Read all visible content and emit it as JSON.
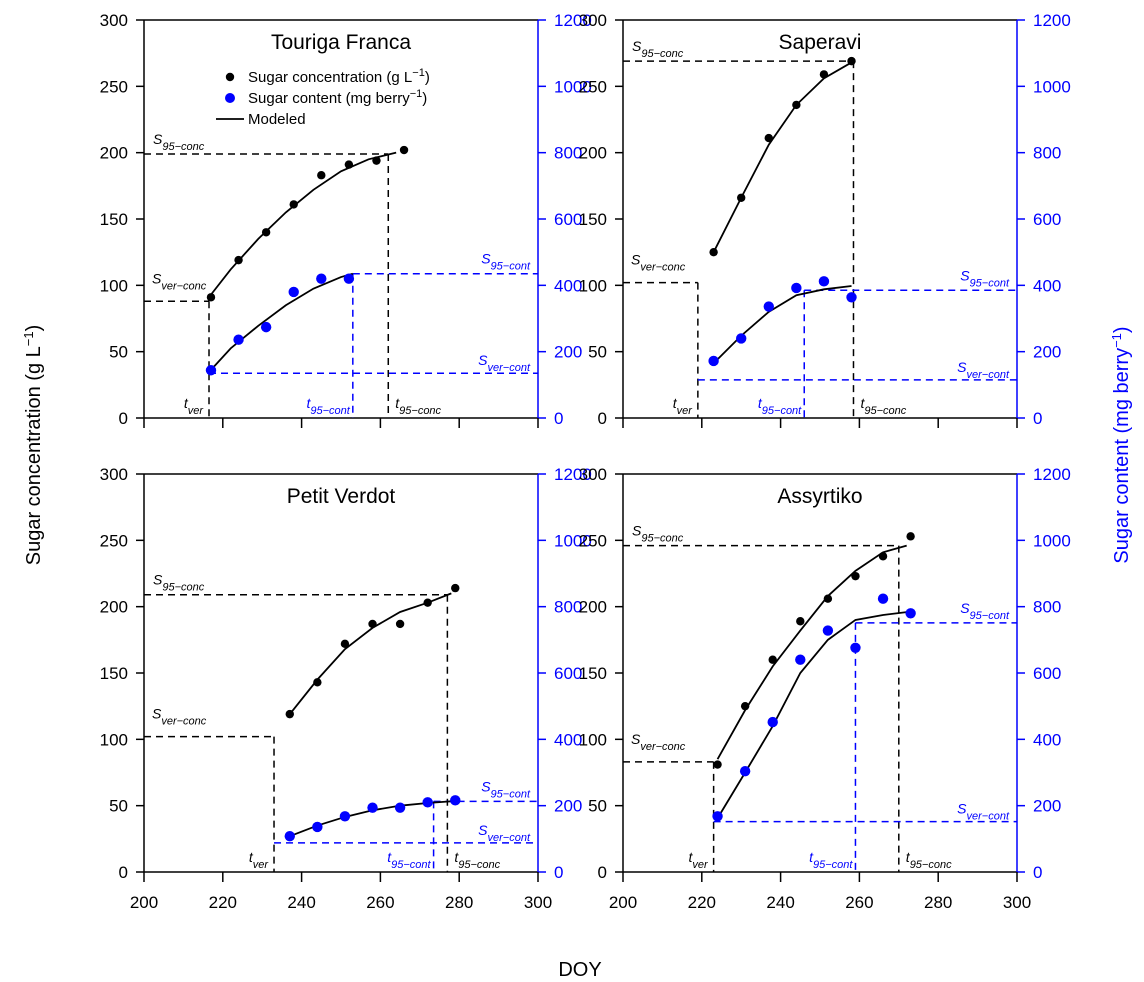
{
  "chart_data": {
    "type": "scatter",
    "xlabel": "DOY",
    "ylabel_left": "Sugar concentration (g L",
    "ylabel_left_exp": "−1",
    "ylabel_left_end": ")",
    "ylabel_right": "Sugar content (mg berry",
    "ylabel_right_exp": "−1",
    "ylabel_right_end": ")",
    "xlim": [
      200,
      300
    ],
    "ylim_left": [
      0,
      300
    ],
    "ylim_right": [
      0,
      1200
    ],
    "xticks": [
      "200",
      "220",
      "240",
      "260",
      "280",
      "300"
    ],
    "yticks_left": [
      "0",
      "50",
      "100",
      "150",
      "200",
      "250",
      "300"
    ],
    "yticks_right": [
      "0",
      "200",
      "400",
      "600",
      "800",
      "1000",
      "1200"
    ],
    "colors": {
      "concentration": "#000000",
      "content": "#0000ff"
    },
    "legend": {
      "placement": "top-left of first panel",
      "items": [
        {
          "label": "Sugar concentration (g L",
          "exp": "−1",
          "end": ")",
          "color": "#000000",
          "kind": "point"
        },
        {
          "label": "Sugar content (mg berry",
          "exp": "−1",
          "end": ")",
          "color": "#0000ff",
          "kind": "point"
        },
        {
          "label": "Modeled",
          "color": "#000000",
          "kind": "line"
        }
      ]
    },
    "annotation_labels": {
      "s95_conc": {
        "main": "S",
        "sub": "95−conc"
      },
      "sver_conc": {
        "main": "S",
        "sub": "ver−conc"
      },
      "s95_cont": {
        "main": "S",
        "sub": "95−cont"
      },
      "sver_cont": {
        "main": "S",
        "sub": "ver−cont"
      },
      "tver": {
        "main": "t",
        "sub": "ver"
      },
      "t95_cont": {
        "main": "t",
        "sub": "95−cont"
      },
      "t95_conc": {
        "main": "t",
        "sub": "95−conc"
      }
    },
    "panels": [
      {
        "title": "Touriga Franca",
        "concentration_points": [
          [
            217,
            91
          ],
          [
            224,
            119
          ],
          [
            231,
            140
          ],
          [
            238,
            161
          ],
          [
            245,
            183
          ],
          [
            252,
            191
          ],
          [
            259,
            194
          ],
          [
            266,
            202
          ]
        ],
        "content_points": [
          [
            217,
            144
          ],
          [
            224,
            236
          ],
          [
            231,
            274
          ],
          [
            238,
            380
          ],
          [
            245,
            420
          ],
          [
            252,
            420
          ]
        ],
        "concentration_model": [
          [
            217,
            93
          ],
          [
            222,
            112
          ],
          [
            229,
            135
          ],
          [
            236,
            155
          ],
          [
            243,
            172
          ],
          [
            250,
            186
          ],
          [
            257,
            195
          ],
          [
            264,
            200
          ]
        ],
        "content_model": [
          [
            217,
            145
          ],
          [
            222,
            210
          ],
          [
            229,
            278
          ],
          [
            236,
            340
          ],
          [
            243,
            390
          ],
          [
            250,
            425
          ],
          [
            253,
            435
          ]
        ],
        "s95_conc": 199,
        "sver_conc": 88,
        "s95_cont": 435,
        "sver_cont": 135,
        "tver": 216.5,
        "t95_cont": 253,
        "t95_conc": 262
      },
      {
        "title": "Saperavi",
        "concentration_points": [
          [
            223,
            125
          ],
          [
            230,
            166
          ],
          [
            237,
            211
          ],
          [
            244,
            236
          ],
          [
            251,
            259
          ],
          [
            258,
            269
          ]
        ],
        "content_points": [
          [
            223,
            172
          ],
          [
            230,
            240
          ],
          [
            237,
            336
          ],
          [
            244,
            392
          ],
          [
            251,
            412
          ],
          [
            258,
            364
          ]
        ],
        "concentration_model": [
          [
            223,
            125
          ],
          [
            230,
            166
          ],
          [
            237,
            206
          ],
          [
            244,
            236
          ],
          [
            251,
            256
          ],
          [
            258,
            268
          ]
        ],
        "content_model": [
          [
            223,
            165
          ],
          [
            230,
            248
          ],
          [
            237,
            320
          ],
          [
            244,
            370
          ],
          [
            251,
            388
          ],
          [
            258,
            398
          ]
        ],
        "s95_conc": 269,
        "sver_conc": 102,
        "s95_cont": 385,
        "sver_cont": 115,
        "tver": 219,
        "t95_cont": 246,
        "t95_conc": 258.5
      },
      {
        "title": "Petit Verdot",
        "concentration_points": [
          [
            237,
            119
          ],
          [
            244,
            143
          ],
          [
            251,
            172
          ],
          [
            258,
            187
          ],
          [
            265,
            187
          ],
          [
            272,
            203
          ],
          [
            279,
            214
          ]
        ],
        "content_points": [
          [
            237,
            108
          ],
          [
            244,
            136
          ],
          [
            251,
            168
          ],
          [
            258,
            194
          ],
          [
            265,
            194
          ],
          [
            272,
            210
          ],
          [
            279,
            216
          ]
        ],
        "concentration_model": [
          [
            237,
            119
          ],
          [
            244,
            145
          ],
          [
            251,
            168
          ],
          [
            258,
            184
          ],
          [
            265,
            196
          ],
          [
            272,
            203
          ],
          [
            278,
            210
          ]
        ],
        "content_model": [
          [
            237,
            108
          ],
          [
            244,
            140
          ],
          [
            251,
            166
          ],
          [
            258,
            186
          ],
          [
            265,
            200
          ],
          [
            272,
            208
          ],
          [
            279,
            214
          ]
        ],
        "s95_conc": 209,
        "sver_conc": 102,
        "s95_cont": 213,
        "sver_cont": 88,
        "tver": 233,
        "t95_cont": 273.5,
        "t95_conc": 277
      },
      {
        "title": "Assyrtiko",
        "concentration_points": [
          [
            224,
            81
          ],
          [
            231,
            125
          ],
          [
            238,
            160
          ],
          [
            245,
            189
          ],
          [
            252,
            206
          ],
          [
            259,
            223
          ],
          [
            266,
            238
          ],
          [
            273,
            253
          ]
        ],
        "content_points": [
          [
            224,
            168
          ],
          [
            231,
            304
          ],
          [
            238,
            452
          ],
          [
            245,
            640
          ],
          [
            252,
            728
          ],
          [
            259,
            676
          ],
          [
            266,
            824
          ],
          [
            273,
            780
          ]
        ],
        "concentration_model": [
          [
            224,
            85
          ],
          [
            231,
            122
          ],
          [
            238,
            155
          ],
          [
            245,
            182
          ],
          [
            252,
            208
          ],
          [
            259,
            227
          ],
          [
            266,
            241
          ],
          [
            272,
            246
          ]
        ],
        "content_model": [
          [
            224,
            162
          ],
          [
            231,
            300
          ],
          [
            238,
            440
          ],
          [
            245,
            600
          ],
          [
            252,
            700
          ],
          [
            259,
            760
          ],
          [
            266,
            775
          ],
          [
            273,
            785
          ]
        ],
        "s95_conc": 246,
        "sver_conc": 83,
        "s95_cont": 751,
        "sver_cont": 152,
        "tver": 223,
        "t95_cont": 259,
        "t95_conc": 270
      }
    ]
  }
}
